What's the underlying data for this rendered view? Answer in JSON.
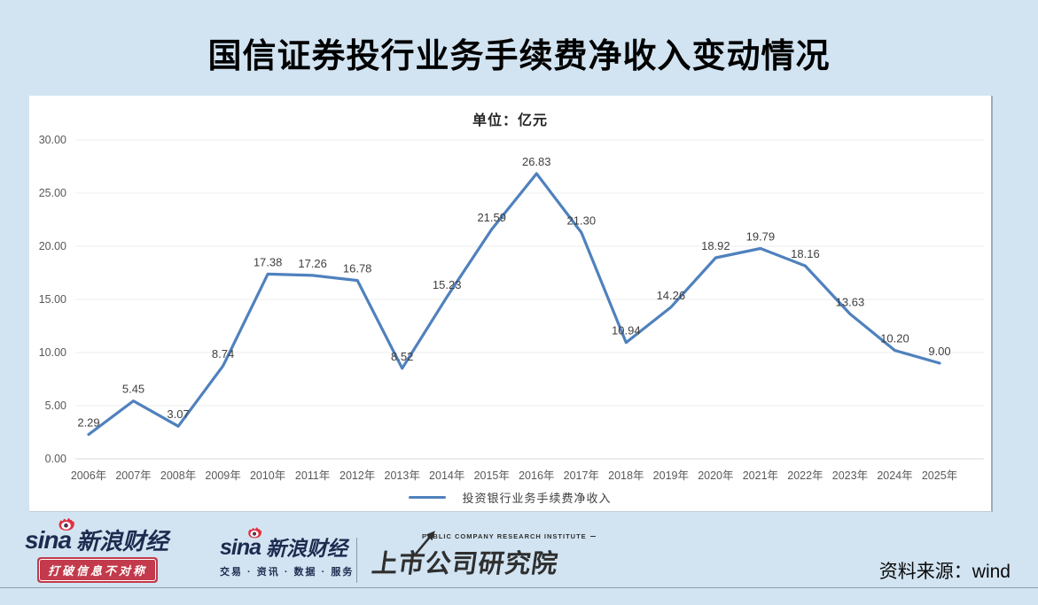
{
  "title": "国信证券投行业务手续费净收入变动情况",
  "chart": {
    "subtitle": "单位：亿元",
    "legend_label": "投资银行业务手续费净收入"
  },
  "chart_data": {
    "type": "line",
    "title": "国信证券投行业务手续费净收入变动情况",
    "unit": "亿元",
    "categories": [
      "2006年",
      "2007年",
      "2008年",
      "2009年",
      "2010年",
      "2011年",
      "2012年",
      "2013年",
      "2014年",
      "2015年",
      "2016年",
      "2017年",
      "2018年",
      "2019年",
      "2020年",
      "2021年",
      "2022年",
      "2023年",
      "2024年",
      "2025年"
    ],
    "series": [
      {
        "name": "投资银行业务手续费净收入",
        "values": [
          2.29,
          5.45,
          3.07,
          8.74,
          17.38,
          17.26,
          16.78,
          8.52,
          15.23,
          21.59,
          26.83,
          21.3,
          10.94,
          14.26,
          18.92,
          19.79,
          18.16,
          13.63,
          10.2,
          9.0
        ]
      }
    ],
    "ylim": [
      0,
      30
    ],
    "ytick_step": 5,
    "ytick_labels": [
      "0.00",
      "5.00",
      "10.00",
      "15.00",
      "20.00",
      "25.00",
      "30.00"
    ],
    "grid": true,
    "legend_position": "bottom",
    "data_labels": true
  },
  "colors": {
    "line": "#4f81bd",
    "background": "#d2e4f2",
    "gridline": "#ececec",
    "baseline": "#d9d9d9",
    "tick_text": "#595959",
    "label_text": "#3f3f3f",
    "sina_navy": "#1d2b4f",
    "sina_red": "#e23041",
    "badge_red": "#c23a4b"
  },
  "footer": {
    "sina_badge": {
      "brand": "sina",
      "name": "新浪财经",
      "slogan": "打破信息不对称"
    },
    "sina_services": {
      "brand": "sina",
      "name": "新浪财经",
      "services": "交易 · 资讯 · 数据 · 服务"
    },
    "institute": {
      "en": "PUBLIC COMPANY RESEARCH INSTITUTE",
      "zh": "上市公司研究院"
    },
    "source": "资料来源：wind"
  }
}
